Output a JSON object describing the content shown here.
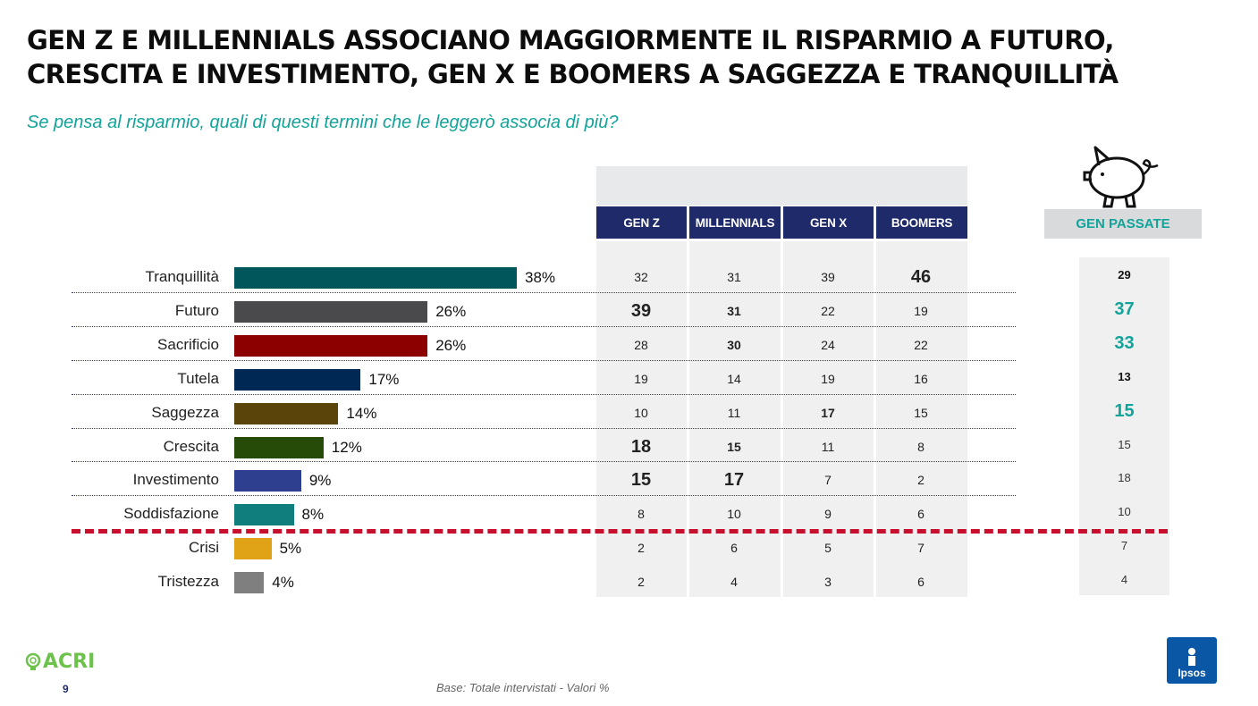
{
  "header": {
    "title_line1": "GEN Z E MILLENNIALS ASSOCIANO MAGGIORMENTE IL RISPARMIO A FUTURO,",
    "title_line2": "CRESCITA E INVESTIMENTO, GEN X E BOOMERS A SAGGEZZA E TRANQUILLITÀ",
    "subtitle": "Se pensa al risparmio, quali di questi termini che le leggerò associa di più?"
  },
  "columns": [
    "GEN Z",
    "MILLENNIALS",
    "GEN X",
    "BOOMERS"
  ],
  "past_column": "GEN PASSATE",
  "chart_data": {
    "type": "bar",
    "orientation": "horizontal",
    "unit": "%",
    "categories": [
      "Tranquillità",
      "Futuro",
      "Sacrificio",
      "Tutela",
      "Saggezza",
      "Crescita",
      "Investimento",
      "Soddisfazione",
      "Crisi",
      "Tristezza"
    ],
    "values": [
      38,
      26,
      26,
      17,
      14,
      12,
      9,
      8,
      5,
      4
    ],
    "labels": [
      "38%",
      "26%",
      "26%",
      "17%",
      "14%",
      "12%",
      "9%",
      "8%",
      "5%",
      "4%"
    ],
    "colors": [
      "#00565a",
      "#4a4a4c",
      "#8c0000",
      "#002855",
      "#5a4409",
      "#264a07",
      "#2e3f8f",
      "#0f7e7c",
      "#e0a317",
      "#7f7f7f"
    ],
    "xlim": [
      0,
      38
    ]
  },
  "table": {
    "rows": [
      {
        "values": [
          "32",
          "31",
          "39",
          "46"
        ],
        "emph": [
          0,
          0,
          0,
          2
        ],
        "past": "29",
        "past_emph": 1
      },
      {
        "values": [
          "39",
          "31",
          "22",
          "19"
        ],
        "emph": [
          2,
          1,
          0,
          0
        ],
        "past": "37",
        "past_emph": 2
      },
      {
        "values": [
          "28",
          "30",
          "24",
          "22"
        ],
        "emph": [
          0,
          1,
          0,
          0
        ],
        "past": "33",
        "past_emph": 2
      },
      {
        "values": [
          "19",
          "14",
          "19",
          "16"
        ],
        "emph": [
          0,
          0,
          0,
          0
        ],
        "past": "13",
        "past_emph": 1
      },
      {
        "values": [
          "10",
          "11",
          "17",
          "15"
        ],
        "emph": [
          0,
          0,
          1,
          0
        ],
        "past": "15",
        "past_emph": 2
      },
      {
        "values": [
          "18",
          "15",
          "11",
          "8"
        ],
        "emph": [
          2,
          1,
          0,
          0
        ],
        "past": "15",
        "past_emph": 0
      },
      {
        "values": [
          "15",
          "17",
          "7",
          "2"
        ],
        "emph": [
          2,
          2,
          0,
          0
        ],
        "past": "18",
        "past_emph": 0
      },
      {
        "values": [
          "8",
          "10",
          "9",
          "6"
        ],
        "emph": [
          0,
          0,
          0,
          0
        ],
        "past": "10",
        "past_emph": 0
      },
      {
        "values": [
          "2",
          "6",
          "5",
          "7"
        ],
        "emph": [
          0,
          0,
          0,
          0
        ],
        "past": "7",
        "past_emph": 0
      },
      {
        "values": [
          "2",
          "4",
          "3",
          "6"
        ],
        "emph": [
          0,
          0,
          0,
          0
        ],
        "past": "4",
        "past_emph": 0
      }
    ]
  },
  "footer": {
    "acri_logo": "ACRI",
    "page_number": "9",
    "base_note": "Base: Totale intervistati  - Valori %",
    "ipsos_logo": "Ipsos",
    "acri_icon": "acri-bulb-icon",
    "ipsos_icon": "ipsos-figure-icon",
    "piggy_icon": "piggy-bank-icon"
  }
}
